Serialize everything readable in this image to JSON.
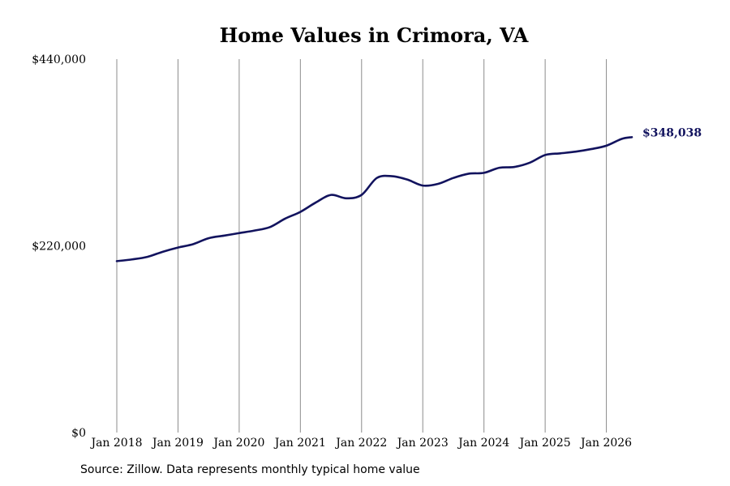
{
  "chart_data": {
    "type": "line",
    "title": "Home Values in Crimora, VA",
    "xlabel": "",
    "ylabel": "",
    "x_tick_labels": [
      "Jan 2018",
      "Jan 2019",
      "Jan 2020",
      "Jan 2021",
      "Jan 2022",
      "Jan 2023",
      "Jan 2024",
      "Jan 2025",
      "Jan 2026"
    ],
    "y_tick_labels": [
      "$0",
      "$220,000",
      "$440,000"
    ],
    "y_ticks": [
      0,
      220000,
      440000
    ],
    "ylim": [
      0,
      440000
    ],
    "xlim": [
      "Jan 2018",
      "Jun 2026"
    ],
    "grid": "vertical",
    "series": [
      {
        "color": "#12135e",
        "end_label": "$348,038",
        "points": [
          [
            "Jan 2018",
            202000
          ],
          [
            "Apr 2018",
            204000
          ],
          [
            "Jul 2018",
            207000
          ],
          [
            "Oct 2018",
            213000
          ],
          [
            "Jan 2019",
            218000
          ],
          [
            "Apr 2019",
            222000
          ],
          [
            "Jul 2019",
            229000
          ],
          [
            "Oct 2019",
            232000
          ],
          [
            "Jan 2020",
            235000
          ],
          [
            "Apr 2020",
            238000
          ],
          [
            "Jul 2020",
            242000
          ],
          [
            "Oct 2020",
            252000
          ],
          [
            "Jan 2021",
            260000
          ],
          [
            "Apr 2021",
            271000
          ],
          [
            "Jul 2021",
            280000
          ],
          [
            "Oct 2021",
            276000
          ],
          [
            "Jan 2022",
            280000
          ],
          [
            "Apr 2022",
            300000
          ],
          [
            "Jul 2022",
            302000
          ],
          [
            "Oct 2022",
            298000
          ],
          [
            "Jan 2023",
            291000
          ],
          [
            "Apr 2023",
            293000
          ],
          [
            "Jul 2023",
            300000
          ],
          [
            "Oct 2023",
            305000
          ],
          [
            "Jan 2024",
            306000
          ],
          [
            "Apr 2024",
            312000
          ],
          [
            "Jul 2024",
            313000
          ],
          [
            "Oct 2024",
            318000
          ],
          [
            "Jan 2025",
            327000
          ],
          [
            "Apr 2025",
            329000
          ],
          [
            "Jul 2025",
            331000
          ],
          [
            "Oct 2025",
            334000
          ],
          [
            "Jan 2026",
            338000
          ],
          [
            "Apr 2026",
            346000
          ],
          [
            "Jun 2026",
            348038
          ]
        ]
      }
    ]
  },
  "footer": {
    "source": "Source: Zillow. Data represents monthly typical home value"
  }
}
